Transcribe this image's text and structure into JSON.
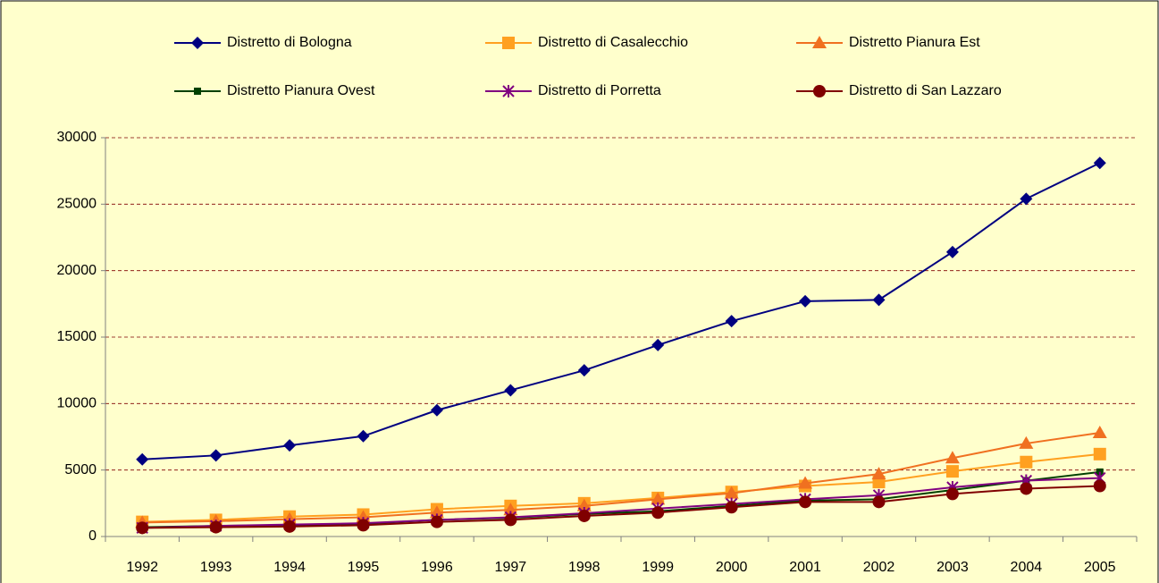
{
  "chart_data": {
    "type": "line",
    "categories": [
      "1992",
      "1993",
      "1994",
      "1995",
      "1996",
      "1997",
      "1998",
      "1999",
      "2000",
      "2001",
      "2002",
      "2003",
      "2004",
      "2005"
    ],
    "series": [
      {
        "name": "Distretto di Bologna",
        "color": "#000080",
        "marker": "diamond",
        "values": [
          5800,
          6100,
          6850,
          7550,
          9500,
          11000,
          12500,
          14400,
          16200,
          17700,
          17800,
          21400,
          25400,
          28100
        ]
      },
      {
        "name": "Distretto di Casalecchio",
        "color": "#ffa020",
        "marker": "square",
        "values": [
          1100,
          1250,
          1500,
          1650,
          2050,
          2300,
          2500,
          2900,
          3350,
          3800,
          4100,
          4900,
          5600,
          6200
        ]
      },
      {
        "name": "Distretto Pianura Est",
        "color": "#f07020",
        "marker": "triangle",
        "values": [
          1050,
          1150,
          1300,
          1450,
          1800,
          2000,
          2300,
          2800,
          3250,
          4000,
          4700,
          5900,
          7000,
          7800
        ]
      },
      {
        "name": "Distretto Pianura Ovest",
        "color": "#004000",
        "marker": "smallsquare",
        "values": [
          700,
          800,
          850,
          950,
          1250,
          1400,
          1700,
          1900,
          2300,
          2700,
          2800,
          3500,
          4200,
          4850
        ]
      },
      {
        "name": "Distretto di Porretta",
        "color": "#800080",
        "marker": "asterisk",
        "values": [
          650,
          800,
          900,
          1000,
          1250,
          1450,
          1750,
          2100,
          2450,
          2800,
          3100,
          3700,
          4200,
          4400
        ]
      },
      {
        "name": "Distretto di San Lazzaro",
        "color": "#800000",
        "marker": "circle",
        "values": [
          650,
          700,
          750,
          850,
          1100,
          1250,
          1550,
          1800,
          2200,
          2600,
          2600,
          3200,
          3600,
          3800
        ]
      }
    ],
    "ylim": [
      0,
      30000
    ],
    "yticks": [
      0,
      5000,
      10000,
      15000,
      20000,
      25000,
      30000
    ],
    "grid": true
  }
}
